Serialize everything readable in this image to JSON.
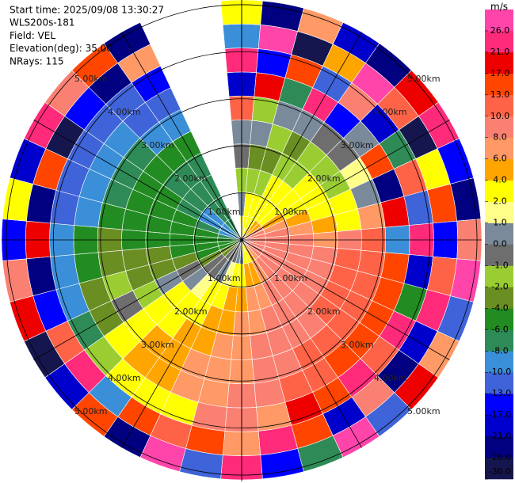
{
  "chart_data": {
    "type": "ppi",
    "header": [
      "Start time: 2025/09/08 13:30:27",
      "WLS200s-181",
      "Field: VEL",
      "Elevation(deg): 35.00",
      "NRays: 115"
    ],
    "rlim": [
      0,
      5.1
    ],
    "range_rings": [
      {
        "value": 1,
        "label": "1.00km"
      },
      {
        "value": 2,
        "label": "2.00km"
      },
      {
        "value": 3,
        "label": "3.00km"
      },
      {
        "value": 4,
        "label": "4.00km"
      },
      {
        "value": 5,
        "label": "5.00km"
      }
    ],
    "azimuths": [
      0,
      10,
      20,
      30,
      40,
      50,
      60,
      70,
      80,
      90,
      100,
      110,
      120,
      130,
      140,
      150,
      160,
      170,
      180,
      190,
      200,
      210,
      220,
      230,
      240,
      250,
      260,
      270,
      280,
      290,
      300,
      310,
      320,
      330,
      340,
      350
    ],
    "values": [
      [
        1.5,
        0.5,
        -1.5,
        -0.5,
        0.5,
        12,
        -20,
        24,
        -9,
        3
      ],
      [
        3,
        2.5,
        -1.5,
        -3,
        0.5,
        -1.5,
        18,
        -14,
        27,
        -22
      ],
      [
        3,
        3,
        -1.5,
        -3,
        -1.5,
        0.5,
        -8,
        15,
        -27,
        7
      ],
      [
        3,
        3,
        2.5,
        -1.5,
        -3,
        0.5,
        22,
        -11,
        5,
        -18
      ],
      [
        5,
        3,
        3,
        -1.5,
        -1.5,
        -0.5,
        -15,
        9,
        28,
        -24
      ],
      [
        5,
        3,
        3,
        2.5,
        -1.5,
        -0.5,
        0.5,
        -19,
        12,
        19
      ],
      [
        7,
        5,
        3,
        3,
        -1.5,
        1.5,
        14,
        -7,
        -28,
        23
      ],
      [
        9,
        7,
        5,
        3,
        3,
        0.5,
        -23,
        11,
        2,
        -15
      ],
      [
        9,
        9,
        7,
        5,
        3,
        7,
        20,
        -12,
        16,
        -26
      ],
      [
        9,
        9,
        9,
        7,
        9,
        11,
        -9,
        25,
        -16,
        8
      ],
      [
        9,
        9,
        9,
        9,
        11,
        11,
        15,
        -21,
        10,
        27
      ],
      [
        9,
        9,
        9,
        9,
        11,
        11,
        14,
        -5,
        22,
        -13
      ],
      [
        9,
        9,
        9,
        9,
        11,
        11,
        15,
        24,
        -18,
        6
      ],
      [
        9,
        9,
        9,
        9,
        11,
        11,
        15,
        12,
        -25,
        18
      ],
      [
        7,
        9,
        9,
        9,
        9,
        11,
        15,
        23,
        9,
        -11
      ],
      [
        5,
        7,
        9,
        9,
        9,
        11,
        11,
        15,
        -20,
        26
      ],
      [
        3,
        5,
        7,
        9,
        9,
        9,
        11,
        19,
        13,
        -8
      ],
      [
        3,
        5,
        7,
        7,
        9,
        9,
        9,
        7,
        24,
        -17
      ],
      [
        0.5,
        3,
        5,
        7,
        7,
        7,
        9,
        9,
        7,
        21
      ],
      [
        0.5,
        3,
        5,
        5,
        7,
        7,
        7,
        9,
        15,
        -12
      ],
      [
        -0.5,
        1.5,
        3,
        5,
        5,
        7,
        7,
        3,
        12,
        27
      ],
      [
        -0.5,
        0.5,
        3,
        3,
        5,
        5,
        5,
        3,
        16,
        -23
      ],
      [
        -0.5,
        -0.5,
        1.5,
        3,
        3,
        5,
        5,
        3,
        -9,
        14
      ],
      [
        -3,
        -0.5,
        0.5,
        3,
        3,
        3,
        3,
        -1.5,
        25,
        -19
      ],
      [
        -3,
        -3,
        -0.5,
        0.5,
        -1.5,
        -0.5,
        -3,
        -7,
        11,
        -27
      ],
      [
        -5,
        -5,
        -3,
        -3,
        -3,
        -1.5,
        -3,
        -9,
        -15,
        20
      ],
      [
        -5,
        -5,
        -5,
        -3,
        -3,
        -3,
        -5,
        -9,
        -22,
        8
      ],
      [
        -5,
        -5,
        -5,
        -5,
        -5,
        -3,
        -5,
        -9,
        17,
        -14
      ],
      [
        -7,
        -5,
        -5,
        -5,
        -5,
        -5,
        -9,
        -11,
        -24,
        3
      ],
      [
        -9,
        -7,
        -5,
        -5,
        -5,
        -7,
        -9,
        -11,
        13,
        -19
      ],
      [
        -9,
        -9,
        -7,
        -5,
        -5,
        -7,
        -9,
        -12,
        -28,
        22
      ],
      [
        -9,
        -9,
        -7,
        -7,
        -5,
        -7,
        -9,
        -11,
        -15,
        9
      ],
      [
        -7,
        -7,
        -7,
        -7,
        -5,
        -9,
        -11,
        -12,
        -23,
        16
      ],
      [
        -7,
        -7,
        -7,
        -7,
        -5,
        -9,
        -11,
        -15,
        7,
        -26
      ],
      [
        null,
        null,
        null,
        null,
        null,
        null,
        null,
        null,
        null,
        null
      ],
      [
        null,
        null,
        null,
        null,
        null,
        null,
        null,
        null,
        null,
        null
      ]
    ],
    "colorbar": {
      "label": "m/s",
      "ticks": [
        {
          "value": -30,
          "label": "-30.0"
        },
        {
          "value": -26,
          "label": "-26.0"
        },
        {
          "value": -21,
          "label": "-21.0"
        },
        {
          "value": -17,
          "label": "-17.0"
        },
        {
          "value": -13,
          "label": "-13.0"
        },
        {
          "value": -10,
          "label": "-10.0"
        },
        {
          "value": -8,
          "label": "-8.0"
        },
        {
          "value": -6,
          "label": "-6.0"
        },
        {
          "value": -4,
          "label": "-4.0"
        },
        {
          "value": -2,
          "label": "-2.0"
        },
        {
          "value": -1,
          "label": "-1.0"
        },
        {
          "value": 0,
          "label": "0.0"
        },
        {
          "value": 1,
          "label": "1.0"
        },
        {
          "value": 2,
          "label": "2.0"
        },
        {
          "value": 4,
          "label": "4.0"
        },
        {
          "value": 6,
          "label": "6.0"
        },
        {
          "value": 8,
          "label": "8.0"
        },
        {
          "value": 10,
          "label": "10.0"
        },
        {
          "value": 13,
          "label": "13.0"
        },
        {
          "value": 17,
          "label": "17.0"
        },
        {
          "value": 21,
          "label": "21.0"
        },
        {
          "value": 26,
          "label": "26.0"
        }
      ],
      "colors": [
        "#16164f",
        "#000080",
        "#0000cd",
        "#0000ff",
        "#3f63d8",
        "#3a8fd8",
        "#2e8b57",
        "#228b22",
        "#6b8e23",
        "#9acd32",
        "#6e6e6e",
        "#7a8a9a",
        "#ffff8a",
        "#ffff00",
        "#ffa500",
        "#ff9966",
        "#fa8072",
        "#ff6347",
        "#ff4500",
        "#ee0000",
        "#ff2a7a",
        "#ff44aa"
      ]
    }
  }
}
